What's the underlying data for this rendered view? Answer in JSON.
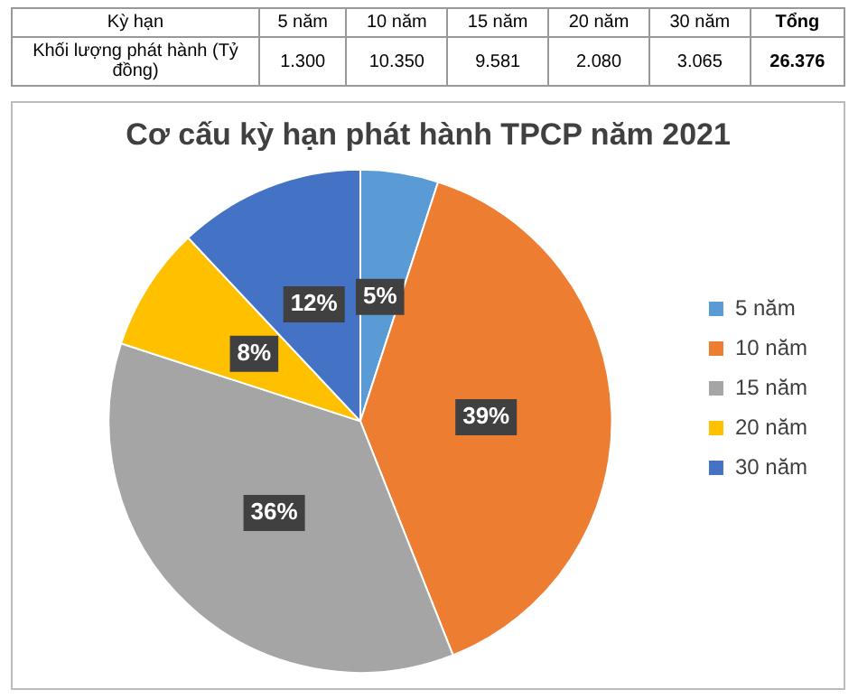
{
  "chart_data": {
    "type": "pie",
    "title": "Cơ cấu kỳ hạn phát hành TPCP năm 2021",
    "categories": [
      "5 năm",
      "10 năm",
      "15 năm",
      "20 năm",
      "30 năm"
    ],
    "values": [
      5,
      39,
      36,
      8,
      12
    ],
    "value_labels": [
      "5%",
      "39%",
      "36%",
      "8%",
      "12%"
    ],
    "colors": [
      "#5b9bd5",
      "#ed7d31",
      "#a5a5a5",
      "#ffc000",
      "#4472c4"
    ],
    "totals": [
      "26.376"
    ],
    "annotations": [
      "Kỳ hạn",
      "Khối lượng phát hành (Tỷ đồng)",
      "Tổng",
      "1.300",
      "10.350",
      "9.581",
      "2.080",
      "3.065"
    ],
    "legend": "right"
  }
}
